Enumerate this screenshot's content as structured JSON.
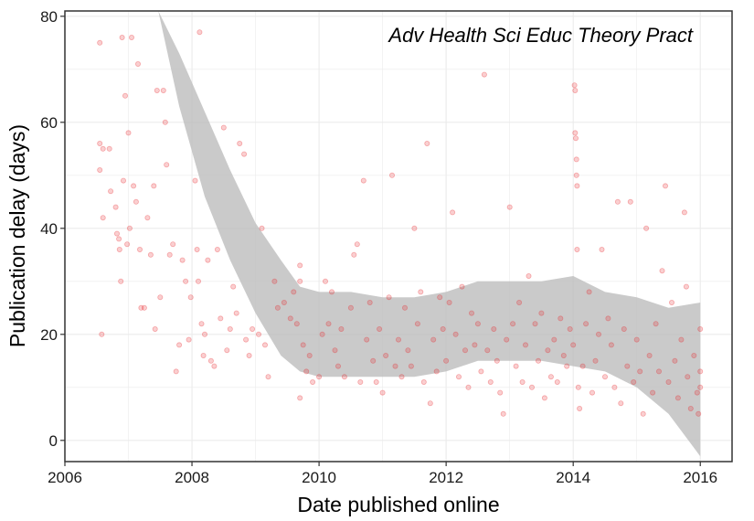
{
  "chart_data": {
    "type": "scatter",
    "title": "",
    "annotation": "Adv Health Sci Educ Theory Pract",
    "xlabel": "Date published online",
    "ylabel": "Publication delay (days)",
    "xlim": [
      2006,
      2016.5
    ],
    "ylim": [
      -4,
      81
    ],
    "x_ticks": [
      2006,
      2008,
      2010,
      2012,
      2014,
      2016
    ],
    "x_tick_labels": [
      "2006",
      "2008",
      "2010",
      "2012",
      "2014",
      "2016"
    ],
    "y_ticks": [
      0,
      20,
      40,
      60,
      80
    ],
    "y_tick_labels": [
      "0",
      "20",
      "40",
      "60",
      "80"
    ],
    "grid": true,
    "legend": "none",
    "colors": {
      "points": "#e8262a",
      "band": "#bdbdbd",
      "grid": "#ebebeb",
      "panel_border": "#333333"
    },
    "series": [
      {
        "values": [
          [
            2006.55,
            56
          ],
          [
            2006.55,
            75
          ],
          [
            2006.6,
            55
          ],
          [
            2006.55,
            51
          ],
          [
            2006.6,
            42
          ],
          [
            2006.58,
            20
          ],
          [
            2006.7,
            55
          ],
          [
            2006.72,
            47
          ],
          [
            2006.8,
            44
          ],
          [
            2006.82,
            39
          ],
          [
            2006.85,
            38
          ],
          [
            2006.86,
            36
          ],
          [
            2006.88,
            30
          ],
          [
            2006.9,
            76
          ],
          [
            2006.92,
            49
          ],
          [
            2006.95,
            65
          ],
          [
            2006.98,
            37
          ],
          [
            2007.0,
            58
          ],
          [
            2007.02,
            40
          ],
          [
            2007.05,
            76
          ],
          [
            2007.08,
            48
          ],
          [
            2007.12,
            45
          ],
          [
            2007.15,
            71
          ],
          [
            2007.18,
            36
          ],
          [
            2007.2,
            25
          ],
          [
            2007.25,
            25
          ],
          [
            2007.3,
            42
          ],
          [
            2007.35,
            35
          ],
          [
            2007.4,
            48
          ],
          [
            2007.42,
            21
          ],
          [
            2007.45,
            66
          ],
          [
            2007.5,
            27
          ],
          [
            2007.55,
            66
          ],
          [
            2007.58,
            60
          ],
          [
            2007.6,
            52
          ],
          [
            2007.65,
            35
          ],
          [
            2007.7,
            37
          ],
          [
            2007.75,
            13
          ],
          [
            2007.8,
            18
          ],
          [
            2007.85,
            34
          ],
          [
            2007.9,
            30
          ],
          [
            2007.95,
            19
          ],
          [
            2007.98,
            27
          ],
          [
            2008.05,
            49
          ],
          [
            2008.08,
            36
          ],
          [
            2008.1,
            30
          ],
          [
            2008.12,
            77
          ],
          [
            2008.15,
            22
          ],
          [
            2008.18,
            16
          ],
          [
            2008.2,
            20
          ],
          [
            2008.25,
            34
          ],
          [
            2008.3,
            15
          ],
          [
            2008.35,
            14
          ],
          [
            2008.4,
            36
          ],
          [
            2008.45,
            23
          ],
          [
            2008.5,
            59
          ],
          [
            2008.55,
            17
          ],
          [
            2008.6,
            21
          ],
          [
            2008.65,
            29
          ],
          [
            2008.7,
            24
          ],
          [
            2008.75,
            56
          ],
          [
            2008.82,
            54
          ],
          [
            2008.85,
            19
          ],
          [
            2008.9,
            16
          ],
          [
            2008.95,
            21
          ],
          [
            2009.05,
            20
          ],
          [
            2009.1,
            40
          ],
          [
            2009.15,
            18
          ],
          [
            2009.2,
            12
          ],
          [
            2009.3,
            30
          ],
          [
            2009.35,
            25
          ],
          [
            2009.45,
            26
          ],
          [
            2009.55,
            23
          ],
          [
            2009.6,
            28
          ],
          [
            2009.65,
            22
          ],
          [
            2009.7,
            8
          ],
          [
            2009.7,
            30
          ],
          [
            2009.7,
            33
          ],
          [
            2009.75,
            18
          ],
          [
            2009.8,
            13
          ],
          [
            2009.85,
            16
          ],
          [
            2009.9,
            11
          ],
          [
            2010.0,
            12
          ],
          [
            2010.05,
            20
          ],
          [
            2010.1,
            30
          ],
          [
            2010.15,
            22
          ],
          [
            2010.2,
            28
          ],
          [
            2010.25,
            17
          ],
          [
            2010.3,
            14
          ],
          [
            2010.35,
            21
          ],
          [
            2010.4,
            12
          ],
          [
            2010.5,
            25
          ],
          [
            2010.55,
            35
          ],
          [
            2010.6,
            37
          ],
          [
            2010.65,
            11
          ],
          [
            2010.7,
            49
          ],
          [
            2010.75,
            19
          ],
          [
            2010.8,
            26
          ],
          [
            2010.85,
            15
          ],
          [
            2010.9,
            11
          ],
          [
            2010.95,
            21
          ],
          [
            2011.0,
            9
          ],
          [
            2011.05,
            16
          ],
          [
            2011.1,
            27
          ],
          [
            2011.15,
            50
          ],
          [
            2011.2,
            14
          ],
          [
            2011.25,
            19
          ],
          [
            2011.3,
            12
          ],
          [
            2011.35,
            25
          ],
          [
            2011.4,
            17
          ],
          [
            2011.45,
            14
          ],
          [
            2011.5,
            40
          ],
          [
            2011.55,
            22
          ],
          [
            2011.6,
            28
          ],
          [
            2011.65,
            11
          ],
          [
            2011.7,
            56
          ],
          [
            2011.75,
            7
          ],
          [
            2011.8,
            19
          ],
          [
            2011.85,
            13
          ],
          [
            2011.9,
            27
          ],
          [
            2011.95,
            21
          ],
          [
            2012.0,
            15
          ],
          [
            2012.05,
            26
          ],
          [
            2012.1,
            43
          ],
          [
            2012.15,
            20
          ],
          [
            2012.2,
            12
          ],
          [
            2012.25,
            29
          ],
          [
            2012.3,
            17
          ],
          [
            2012.35,
            10
          ],
          [
            2012.4,
            24
          ],
          [
            2012.45,
            18
          ],
          [
            2012.5,
            22
          ],
          [
            2012.55,
            13
          ],
          [
            2012.6,
            69
          ],
          [
            2012.65,
            17
          ],
          [
            2012.7,
            11
          ],
          [
            2012.75,
            21
          ],
          [
            2012.8,
            15
          ],
          [
            2012.85,
            9
          ],
          [
            2012.9,
            5
          ],
          [
            2012.95,
            19
          ],
          [
            2013.0,
            44
          ],
          [
            2013.05,
            22
          ],
          [
            2013.1,
            14
          ],
          [
            2013.15,
            26
          ],
          [
            2013.2,
            11
          ],
          [
            2013.25,
            18
          ],
          [
            2013.3,
            31
          ],
          [
            2013.35,
            10
          ],
          [
            2013.4,
            22
          ],
          [
            2013.45,
            15
          ],
          [
            2013.5,
            24
          ],
          [
            2013.55,
            8
          ],
          [
            2013.6,
            17
          ],
          [
            2013.65,
            12
          ],
          [
            2013.7,
            19
          ],
          [
            2013.75,
            11
          ],
          [
            2013.8,
            23
          ],
          [
            2013.85,
            16
          ],
          [
            2013.9,
            14
          ],
          [
            2013.95,
            21
          ],
          [
            2014.0,
            18
          ],
          [
            2014.02,
            67
          ],
          [
            2014.03,
            66
          ],
          [
            2014.03,
            58
          ],
          [
            2014.04,
            57
          ],
          [
            2014.05,
            53
          ],
          [
            2014.05,
            50
          ],
          [
            2014.06,
            48
          ],
          [
            2014.06,
            36
          ],
          [
            2014.08,
            10
          ],
          [
            2014.1,
            6
          ],
          [
            2014.15,
            14
          ],
          [
            2014.2,
            22
          ],
          [
            2014.25,
            28
          ],
          [
            2014.3,
            9
          ],
          [
            2014.35,
            15
          ],
          [
            2014.4,
            20
          ],
          [
            2014.45,
            36
          ],
          [
            2014.5,
            12
          ],
          [
            2014.55,
            23
          ],
          [
            2014.6,
            18
          ],
          [
            2014.65,
            10
          ],
          [
            2014.7,
            45
          ],
          [
            2014.75,
            7
          ],
          [
            2014.8,
            21
          ],
          [
            2014.85,
            14
          ],
          [
            2014.9,
            45
          ],
          [
            2014.95,
            11
          ],
          [
            2015.0,
            19
          ],
          [
            2015.05,
            13
          ],
          [
            2015.1,
            5
          ],
          [
            2015.15,
            40
          ],
          [
            2015.2,
            16
          ],
          [
            2015.25,
            9
          ],
          [
            2015.3,
            22
          ],
          [
            2015.35,
            13
          ],
          [
            2015.4,
            32
          ],
          [
            2015.45,
            48
          ],
          [
            2015.5,
            11
          ],
          [
            2015.55,
            26
          ],
          [
            2015.6,
            15
          ],
          [
            2015.65,
            8
          ],
          [
            2015.7,
            19
          ],
          [
            2015.75,
            43
          ],
          [
            2015.78,
            29
          ],
          [
            2015.8,
            12
          ],
          [
            2015.85,
            6
          ],
          [
            2015.9,
            16
          ],
          [
            2015.95,
            9
          ],
          [
            2015.97,
            5
          ],
          [
            2016.0,
            13
          ],
          [
            2016.0,
            21
          ],
          [
            2016.0,
            10
          ]
        ]
      }
    ],
    "smooth_band": {
      "x": [
        2007.47,
        2007.8,
        2008.2,
        2008.6,
        2009.0,
        2009.4,
        2009.7,
        2010.0,
        2010.5,
        2011.0,
        2011.5,
        2012.0,
        2012.5,
        2013.0,
        2013.5,
        2014.0,
        2014.5,
        2015.0,
        2015.5,
        2016.0
      ],
      "upper": [
        81,
        73,
        62,
        51,
        41,
        34,
        29,
        28,
        28,
        27,
        27,
        28,
        30,
        30,
        30,
        31,
        28,
        27,
        25,
        26
      ],
      "lower": [
        81,
        63,
        46,
        34,
        24,
        16,
        13,
        12,
        12,
        12,
        12,
        13,
        15,
        15,
        15,
        14,
        13,
        10,
        5,
        -3
      ]
    }
  }
}
